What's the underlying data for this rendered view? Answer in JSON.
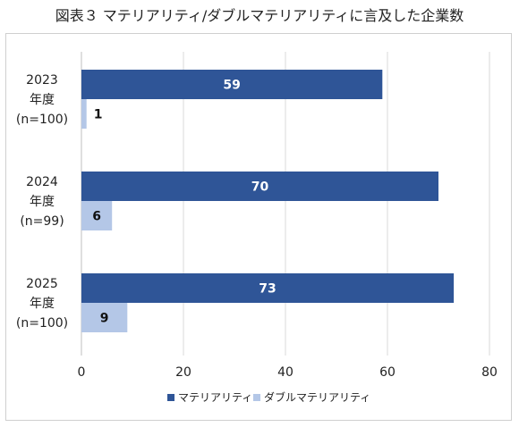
{
  "chart_data": {
    "type": "bar",
    "orientation": "horizontal",
    "title": "図表３ マテリアリティ/ダブルマテリアリティに言及した企業数",
    "categories": [
      [
        "2023",
        "年度",
        "(n=100)"
      ],
      [
        "2024",
        "年度",
        "(n=99)"
      ],
      [
        "2025",
        "年度",
        "(n=100)"
      ]
    ],
    "series": [
      {
        "name": "マテリアリティ",
        "values": [
          59,
          70,
          73
        ],
        "color": "#2f5597"
      },
      {
        "name": "ダブルマテリアリティ",
        "values": [
          1,
          6,
          9
        ],
        "color": "#b4c7e7"
      }
    ],
    "xlim": [
      0,
      80
    ],
    "xticks": [
      0,
      20,
      40,
      60,
      80
    ],
    "grid": true,
    "legend": "bottom",
    "data_labels": true
  }
}
